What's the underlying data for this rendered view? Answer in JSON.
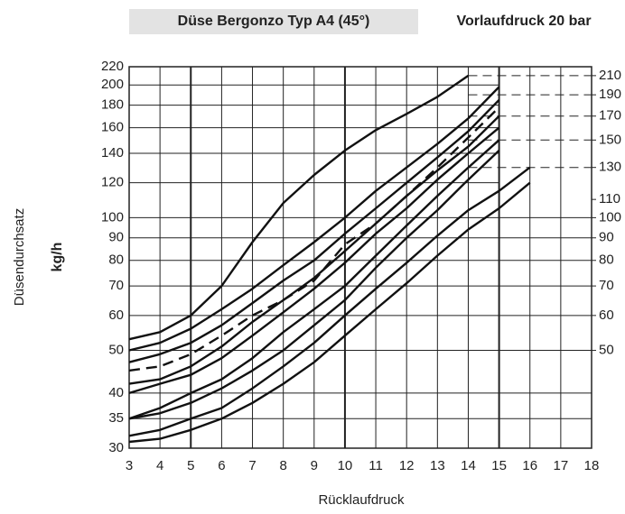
{
  "chart_data": {
    "type": "line",
    "title": "Düse Bergonzo Typ A4 (45°)",
    "subtitle": "Vorlaufdruck 20 bar",
    "y_label": "Düsendurchsatz",
    "y_unit": "kg/h",
    "x_label": "Rücklaufdruck",
    "log_y": true,
    "grid": true,
    "x": [
      3,
      4,
      5,
      6,
      7,
      8,
      9,
      10,
      11,
      12,
      13,
      14,
      15,
      16
    ],
    "xlim": [
      3,
      18
    ],
    "xticks": [
      3,
      4,
      5,
      6,
      7,
      8,
      9,
      10,
      11,
      12,
      13,
      14,
      15,
      16,
      17,
      18
    ],
    "ylim": [
      30,
      220
    ],
    "yticks": [
      30,
      35,
      40,
      50,
      60,
      70,
      80,
      90,
      100,
      120,
      140,
      160,
      180,
      200,
      220
    ],
    "y2lim": [
      30,
      220
    ],
    "y2ticks": [
      50,
      60,
      70,
      80,
      90,
      100,
      110,
      130,
      150,
      170,
      190,
      210
    ],
    "series": [
      {
        "color": "#111111",
        "dashed": false,
        "values": [
          53,
          55,
          60,
          70,
          88,
          108,
          125,
          142,
          158,
          172,
          188,
          210,
          null,
          null
        ]
      },
      {
        "color": "#111111",
        "dashed": false,
        "values": [
          50,
          52,
          56,
          62,
          69,
          78,
          88,
          100,
          115,
          130,
          147,
          168,
          198,
          null
        ]
      },
      {
        "color": "#111111",
        "dashed": false,
        "values": [
          47,
          49,
          52,
          57,
          64,
          72,
          80,
          92,
          105,
          120,
          137,
          157,
          185,
          null
        ]
      },
      {
        "color": "#111111",
        "dashed": true,
        "values": [
          45,
          46,
          49,
          54,
          60,
          65,
          72,
          87,
          97,
          112,
          130,
          152,
          178,
          null
        ]
      },
      {
        "color": "#111111",
        "dashed": false,
        "values": [
          42,
          43,
          46,
          51,
          58,
          65,
          73,
          84,
          97,
          112,
          128,
          145,
          170,
          null
        ]
      },
      {
        "color": "#111111",
        "dashed": false,
        "values": [
          40,
          42,
          44,
          48,
          54,
          61,
          69,
          79,
          92,
          105,
          122,
          140,
          160,
          null
        ]
      },
      {
        "color": "#111111",
        "dashed": false,
        "values": [
          35,
          37,
          40,
          43,
          48,
          55,
          62,
          70,
          82,
          96,
          112,
          130,
          150,
          null
        ]
      },
      {
        "color": "#111111",
        "dashed": false,
        "values": [
          35,
          36,
          38,
          41,
          45,
          50,
          57,
          65,
          77,
          90,
          104,
          122,
          142,
          null
        ]
      },
      {
        "color": "#111111",
        "dashed": false,
        "values": [
          32,
          33,
          35,
          37,
          41,
          46,
          52,
          60,
          69,
          79,
          91,
          104,
          115,
          130
        ]
      },
      {
        "color": "#111111",
        "dashed": false,
        "values": [
          31,
          31.5,
          33,
          35,
          38,
          42,
          47,
          54,
          62,
          71,
          82,
          94,
          105,
          120
        ]
      }
    ]
  }
}
